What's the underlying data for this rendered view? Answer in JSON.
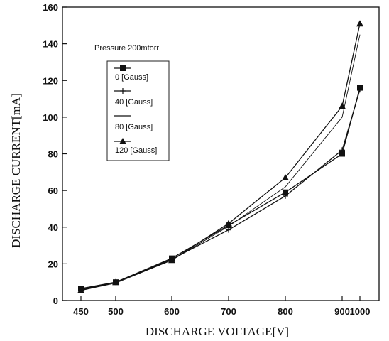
{
  "chart_data": {
    "type": "line",
    "title": "",
    "xlabel": "DISCHARGE VOLTAGE[V]",
    "ylabel": "DISCHARGE CURRENT[mA]",
    "x": [
      450,
      500,
      600,
      700,
      800,
      900,
      1000
    ],
    "x_tick_labels": [
      "450",
      "500",
      "600",
      "700",
      "800",
      "900",
      "1000"
    ],
    "y_ticks": [
      0,
      20,
      40,
      60,
      80,
      100,
      120,
      140,
      160
    ],
    "y_tick_labels": [
      "0",
      "20",
      "40",
      "60",
      "80",
      "100",
      "120",
      "140",
      "160"
    ],
    "ylim": [
      0,
      160
    ],
    "grid": false,
    "legend_position": "top-left",
    "annotation": "Pressure  200mtorr",
    "series": [
      {
        "name": "0 [Gauss]",
        "marker": "square",
        "values": [
          6.5,
          10,
          23,
          41,
          59,
          80,
          116
        ]
      },
      {
        "name": "40 [Gauss]",
        "marker": "plus",
        "values": [
          6,
          10,
          22.5,
          38.5,
          57,
          82,
          115
        ]
      },
      {
        "name": "80 [Gauss]",
        "marker": "none",
        "values": [
          5.5,
          9.5,
          22,
          40.5,
          62,
          100,
          145
        ]
      },
      {
        "name": "120 [Gauss]",
        "marker": "triangle",
        "values": [
          5.5,
          10,
          22,
          42,
          67,
          106,
          151
        ]
      }
    ]
  }
}
